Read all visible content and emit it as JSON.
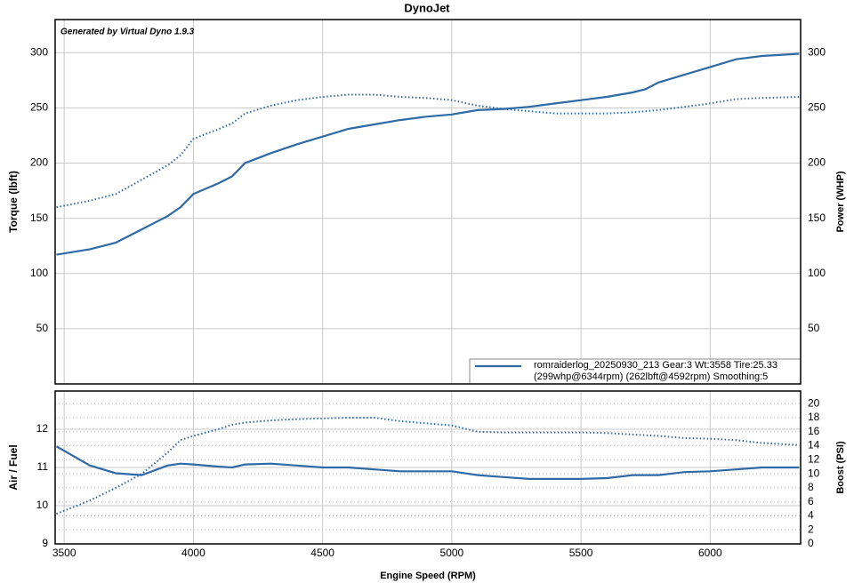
{
  "chart_data": [
    {
      "type": "line",
      "title": "DynoJet",
      "watermark": "Generated by Virtual Dyno 1.9.3",
      "ylabel": "Torque (lbft)",
      "y2label": "Power (WHP)",
      "xlim": [
        3465,
        6350
      ],
      "xticks": [
        3500,
        4000,
        4500,
        5000,
        5500,
        6000
      ],
      "x_tick_labels": false,
      "ylim": [
        0,
        330
      ],
      "yticks": [
        50,
        100,
        150,
        200,
        250,
        300
      ],
      "y2lim": [
        0,
        330
      ],
      "y2ticks": [
        50,
        100,
        150,
        200,
        250,
        300
      ],
      "grid": true,
      "legend": [
        "romraiderlog_20250930_213 Gear:3 Wt:3558 Tire:25.33",
        "(299whp@6344rpm) (262lbft@4592rpm) Smoothing:5"
      ],
      "legend_position": "lower right",
      "x": [
        3470,
        3600,
        3700,
        3800,
        3900,
        3950,
        4000,
        4100,
        4150,
        4200,
        4300,
        4400,
        4500,
        4600,
        4700,
        4800,
        4900,
        5000,
        5100,
        5200,
        5300,
        5400,
        5500,
        5600,
        5700,
        5750,
        5800,
        5900,
        6000,
        6100,
        6200,
        6344
      ],
      "series": [
        {
          "color": "#2e6aa6",
          "style": "solid",
          "axis": "y2",
          "values": [
            117,
            122,
            128,
            140,
            152,
            160,
            172,
            182,
            188,
            200,
            209,
            217,
            224,
            231,
            235,
            239,
            242,
            244,
            248,
            249,
            251,
            254,
            257,
            260,
            264,
            267,
            273,
            280,
            287,
            294,
            297,
            299
          ]
        },
        {
          "color": "#2e6aa6",
          "style": "dotted",
          "values": [
            160,
            166,
            172,
            185,
            198,
            207,
            222,
            231,
            236,
            245,
            252,
            257,
            260,
            262,
            262,
            260,
            259,
            257,
            252,
            249,
            247,
            245,
            245,
            245,
            246,
            247,
            248,
            251,
            254,
            258,
            259,
            260
          ]
        }
      ]
    },
    {
      "type": "line",
      "ylabel": "Air / Fuel",
      "y2label": "Boost (PSI)",
      "xlabel": "Engine Speed (RPM)",
      "xlim": [
        3465,
        6350
      ],
      "xticks": [
        3500,
        4000,
        4500,
        5000,
        5500,
        6000
      ],
      "x_tick_labels": true,
      "ylim": [
        9,
        13
      ],
      "yticks": [
        9,
        10,
        11,
        12
      ],
      "y2lim": [
        0,
        21.8
      ],
      "y2ticks": [
        0,
        2,
        4,
        6,
        8,
        10,
        12,
        14,
        16,
        18,
        20
      ],
      "grid": true,
      "x": [
        3470,
        3600,
        3700,
        3800,
        3900,
        3950,
        4000,
        4100,
        4150,
        4200,
        4300,
        4400,
        4500,
        4600,
        4700,
        4800,
        4900,
        5000,
        5100,
        5200,
        5300,
        5400,
        5500,
        5600,
        5700,
        5750,
        5800,
        5900,
        6000,
        6100,
        6200,
        6344
      ],
      "series": [
        {
          "color": "#2e6aa6",
          "style": "solid",
          "values": [
            11.55,
            11.05,
            10.85,
            10.8,
            11.05,
            11.1,
            11.08,
            11.02,
            11.0,
            11.08,
            11.1,
            11.05,
            11.0,
            11.0,
            10.95,
            10.9,
            10.9,
            10.9,
            10.8,
            10.75,
            10.7,
            10.7,
            10.7,
            10.72,
            10.8,
            10.8,
            10.8,
            10.88,
            10.9,
            10.95,
            11.0,
            11.0
          ]
        },
        {
          "color": "#2e6aa6",
          "style": "dotted",
          "axis": "y2",
          "values": [
            4.3,
            6.2,
            8.0,
            10.0,
            13.0,
            14.8,
            15.4,
            16.4,
            17.0,
            17.3,
            17.6,
            17.8,
            17.9,
            18.0,
            18.0,
            17.5,
            17.2,
            16.9,
            16.0,
            15.9,
            15.9,
            15.9,
            15.9,
            15.8,
            15.6,
            15.5,
            15.4,
            15.1,
            15.0,
            14.8,
            14.4,
            14.1
          ]
        }
      ]
    }
  ]
}
